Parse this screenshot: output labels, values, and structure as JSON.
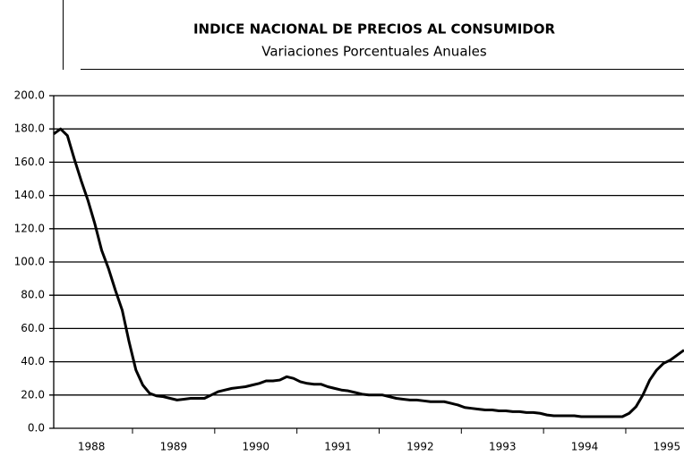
{
  "chart_data": {
    "type": "line",
    "title": "INDICE NACIONAL DE PRECIOS AL CONSUMIDOR",
    "subtitle": "Variaciones Porcentuales Anuales",
    "categories": [
      null,
      null,
      null,
      null,
      null,
      null,
      "1988",
      null,
      null,
      null,
      null,
      null,
      null,
      null,
      null,
      null,
      null,
      null,
      "1989",
      null,
      null,
      null,
      null,
      null,
      null,
      null,
      null,
      null,
      null,
      null,
      "1990",
      null,
      null,
      null,
      null,
      null,
      null,
      null,
      null,
      null,
      null,
      null,
      "1991",
      null,
      null,
      null,
      null,
      null,
      null,
      null,
      null,
      null,
      null,
      null,
      "1992",
      null,
      null,
      null,
      null,
      null,
      null,
      null,
      null,
      null,
      null,
      null,
      "1993",
      null,
      null,
      null,
      null,
      null,
      null,
      null,
      null,
      null,
      null,
      null,
      "1994",
      null,
      null,
      null,
      null,
      null,
      null,
      null,
      null,
      null,
      null,
      null,
      "1995",
      null,
      null
    ],
    "series": [
      {
        "color": "#000000",
        "values": [
          177,
          180,
          176,
          162,
          149,
          137,
          123,
          107,
          96,
          83,
          71,
          52,
          35,
          26,
          21,
          19.5,
          19,
          18,
          17,
          17.5,
          18,
          18,
          18,
          20,
          22,
          23,
          24,
          24.5,
          25,
          26,
          27,
          28.5,
          28.5,
          29,
          31,
          30,
          28,
          27,
          26.5,
          26.5,
          25,
          24,
          23,
          22.5,
          21.5,
          20.5,
          20,
          20,
          20,
          19,
          18,
          17.5,
          17,
          17,
          16.5,
          16,
          16,
          16,
          15,
          14,
          12.5,
          12,
          11.5,
          11,
          11,
          10.5,
          10.5,
          10,
          10,
          9.5,
          9.5,
          9,
          8,
          7.5,
          7.5,
          7.5,
          7.5,
          7,
          7,
          7,
          7,
          7,
          7,
          7,
          9,
          13,
          20,
          29,
          35,
          39,
          41,
          44,
          47
        ]
      }
    ],
    "ylim": [
      0,
      200
    ],
    "yticks": [
      {
        "value": 0,
        "label": "0.0"
      },
      {
        "value": 20,
        "label": "20.0"
      },
      {
        "value": 40,
        "label": "40.0"
      },
      {
        "value": 60,
        "label": "60.0"
      },
      {
        "value": 80,
        "label": "80.0"
      },
      {
        "value": 100,
        "label": "100.0"
      },
      {
        "value": 120,
        "label": "120.0"
      },
      {
        "value": 140,
        "label": "140.0"
      },
      {
        "value": 160,
        "label": "160.0"
      },
      {
        "value": 180,
        "label": "180.0"
      },
      {
        "value": 200,
        "label": "200.0"
      }
    ],
    "grid": true
  }
}
